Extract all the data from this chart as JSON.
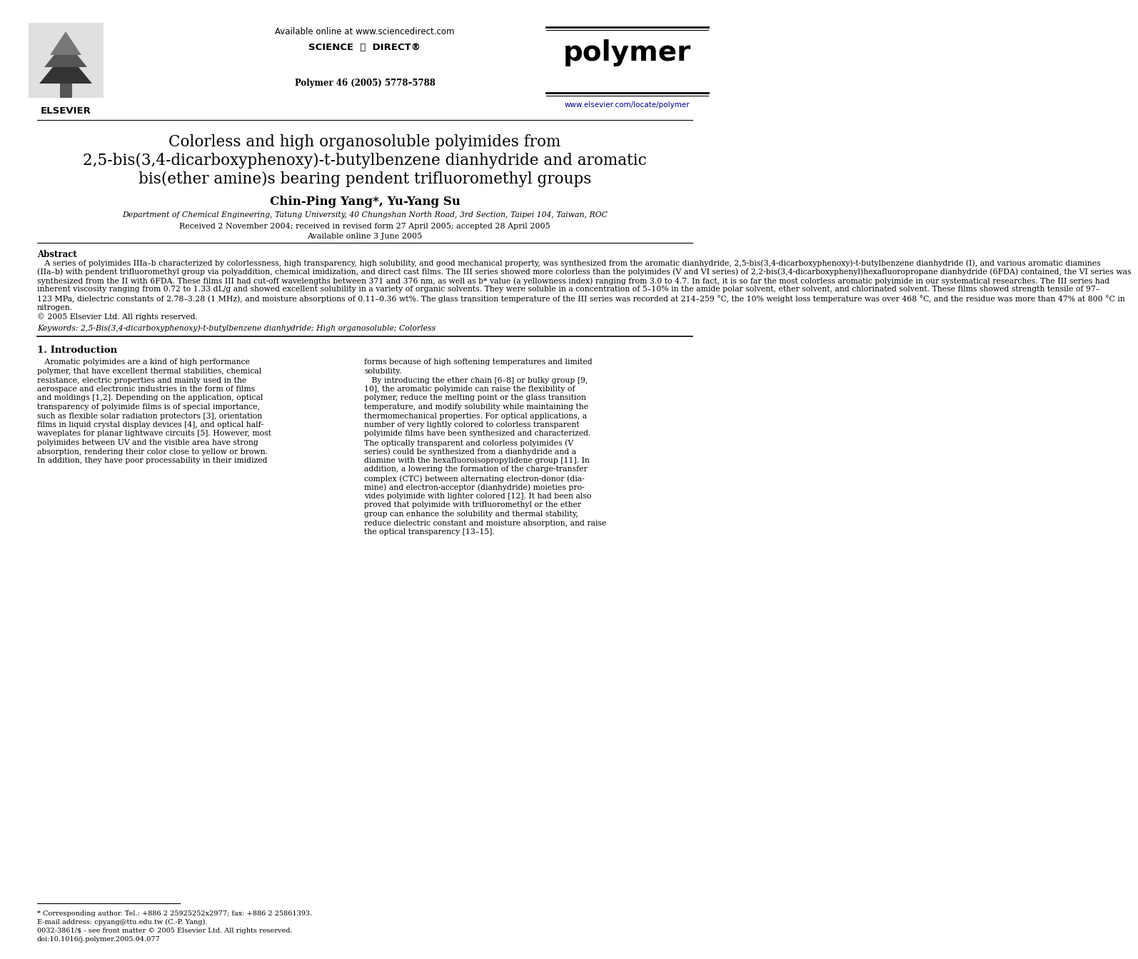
{
  "bg_color": "#ffffff",
  "header_available_text": "Available online at www.sciencedirect.com",
  "header_journal_text": "Polymer 46 (2005) 5778–5788",
  "header_url_text": "www.elsevier.com/locate/polymer",
  "journal_name": "polymer",
  "title_line1": "Colorless and high organosoluble polyimides from",
  "title_line2": "2,5-bis(3,4-dicarboxyphenoxy)-t-butylbenzene dianhydride and aromatic",
  "title_line3": "bis(ether amine)s bearing pendent trifluoromethyl groups",
  "authors": "Chin-Ping Yang*, Yu-Yang Su",
  "affiliation": "Department of Chemical Engineering, Tatung University, 40 Chungshan North Road, 3rd Section, Taipei 104, Taiwan, ROC",
  "received_text": "Received 2 November 2004; received in revised form 27 April 2005; accepted 28 April 2005",
  "available_text": "Available online 3 June 2005",
  "abstract_heading": "Abstract",
  "abstract_lines": [
    "   A series of polyimides IIIa–b characterized by colorlessness, high transparency, high solubility, and good mechanical property, was synthesized from the aromatic dianhydride, 2,5-bis(3,4-dicarboxyphenoxy)-t-butylbenzene dianhydride (I), and various aromatic diamines",
    "(IIa–b) with pendent trifluoromethyl group via polyaddition, chemical imidization, and direct cast films. The III series showed more colorless than the polyimides (V and VI series) of 2,2-bis(3,4-dicarboxyphenyl)hexafluoropropane dianhydride (6FDA) contained, the VI series was",
    "synthesized from the II with 6FDA. These films III had cut-off wavelengths between 371 and 376 nm, as well as b* value (a yellowness index) ranging from 3.0 to 4.7. In fact, it is so far the most colorless aromatic polyimide in our systematical researches. The III series had",
    "inherent viscosity ranging from 0.72 to 1.33 dL/g and showed excellent solubility in a variety of organic solvents. They were soluble in a concentration of 5–10% in the amide polar solvent, ether solvent, and chlorinated solvent. These films showed strength tensile of 97–",
    "123 MPa, dielectric constants of 2.78–3.28 (1 MHz), and moisture absorptions of 0.11–0.36 wt%. The glass transition temperature of the III series was recorded at 214–259 °C, the 10% weight loss temperature was over 468 °C, and the residue was more than 47% at 800 °C in",
    "nitrogen.",
    "© 2005 Elsevier Ltd. All rights reserved."
  ],
  "keywords_text": "Keywords: 2,5-Bis(3,4-dicarboxyphenoxy)-t-butylbenzene dianhydride; High organosoluble; Colorless",
  "section1_heading": "1. Introduction",
  "intro_left_lines": [
    "   Aromatic polyimides are a kind of high performance",
    "polymer, that have excellent thermal stabilities, chemical",
    "resistance, electric properties and mainly used in the",
    "aerospace and electronic industries in the form of films",
    "and moldings [1,2]. Depending on the application, optical",
    "transparency of polyimide films is of special importance,",
    "such as flexible solar radiation protectors [3], orientation",
    "films in liquid crystal display devices [4], and optical half-",
    "waveplates for planar lightwave circuits [5]. However, most",
    "polyimides between UV and the visible area have strong",
    "absorption, rendering their color close to yellow or brown.",
    "In addition, they have poor processability in their imidized"
  ],
  "intro_right_lines": [
    "forms because of high softening temperatures and limited",
    "solubility.",
    "   By introducing the ether chain [6–8] or bulky group [9,",
    "10], the aromatic polyimide can raise the flexibility of",
    "polymer, reduce the melting point or the glass transition",
    "temperature, and modify solubility while maintaining the",
    "thermomechanical properties. For optical applications, a",
    "number of very lightly colored to colorless transparent",
    "polyimide films have been synthesized and characterized.",
    "The optically transparent and colorless polyimides (V",
    "series) could be synthesized from a dianhydride and a",
    "diamine with the hexafluoroisopropylidene group [11]. In",
    "addition, a lowering the formation of the charge-transfer",
    "complex (CTC) between alternating electron-donor (dia-",
    "mine) and electron-acceptor (dianhydride) moieties pro-",
    "vides polyimide with lighter colored [12]. It had been also",
    "proved that polyimide with trifluoromethyl or the ether",
    "group can enhance the solubility and thermal stability,",
    "reduce dielectric constant and moisture absorption, and raise",
    "the optical transparency [13–15]."
  ],
  "footnote_star": "* Corresponding author. Tel.: +886 2 25925252x2977; fax: +886 2 25861393.",
  "footnote_email": "E-mail address: cpyang@ttu.edu.tw (C.-P. Yang).",
  "footnote_issn": "0032-3861/$ - see front matter © 2005 Elsevier Ltd. All rights reserved.",
  "footnote_doi": "doi:10.1016/j.polymer.2005.04.077",
  "link_color": "#00008B"
}
